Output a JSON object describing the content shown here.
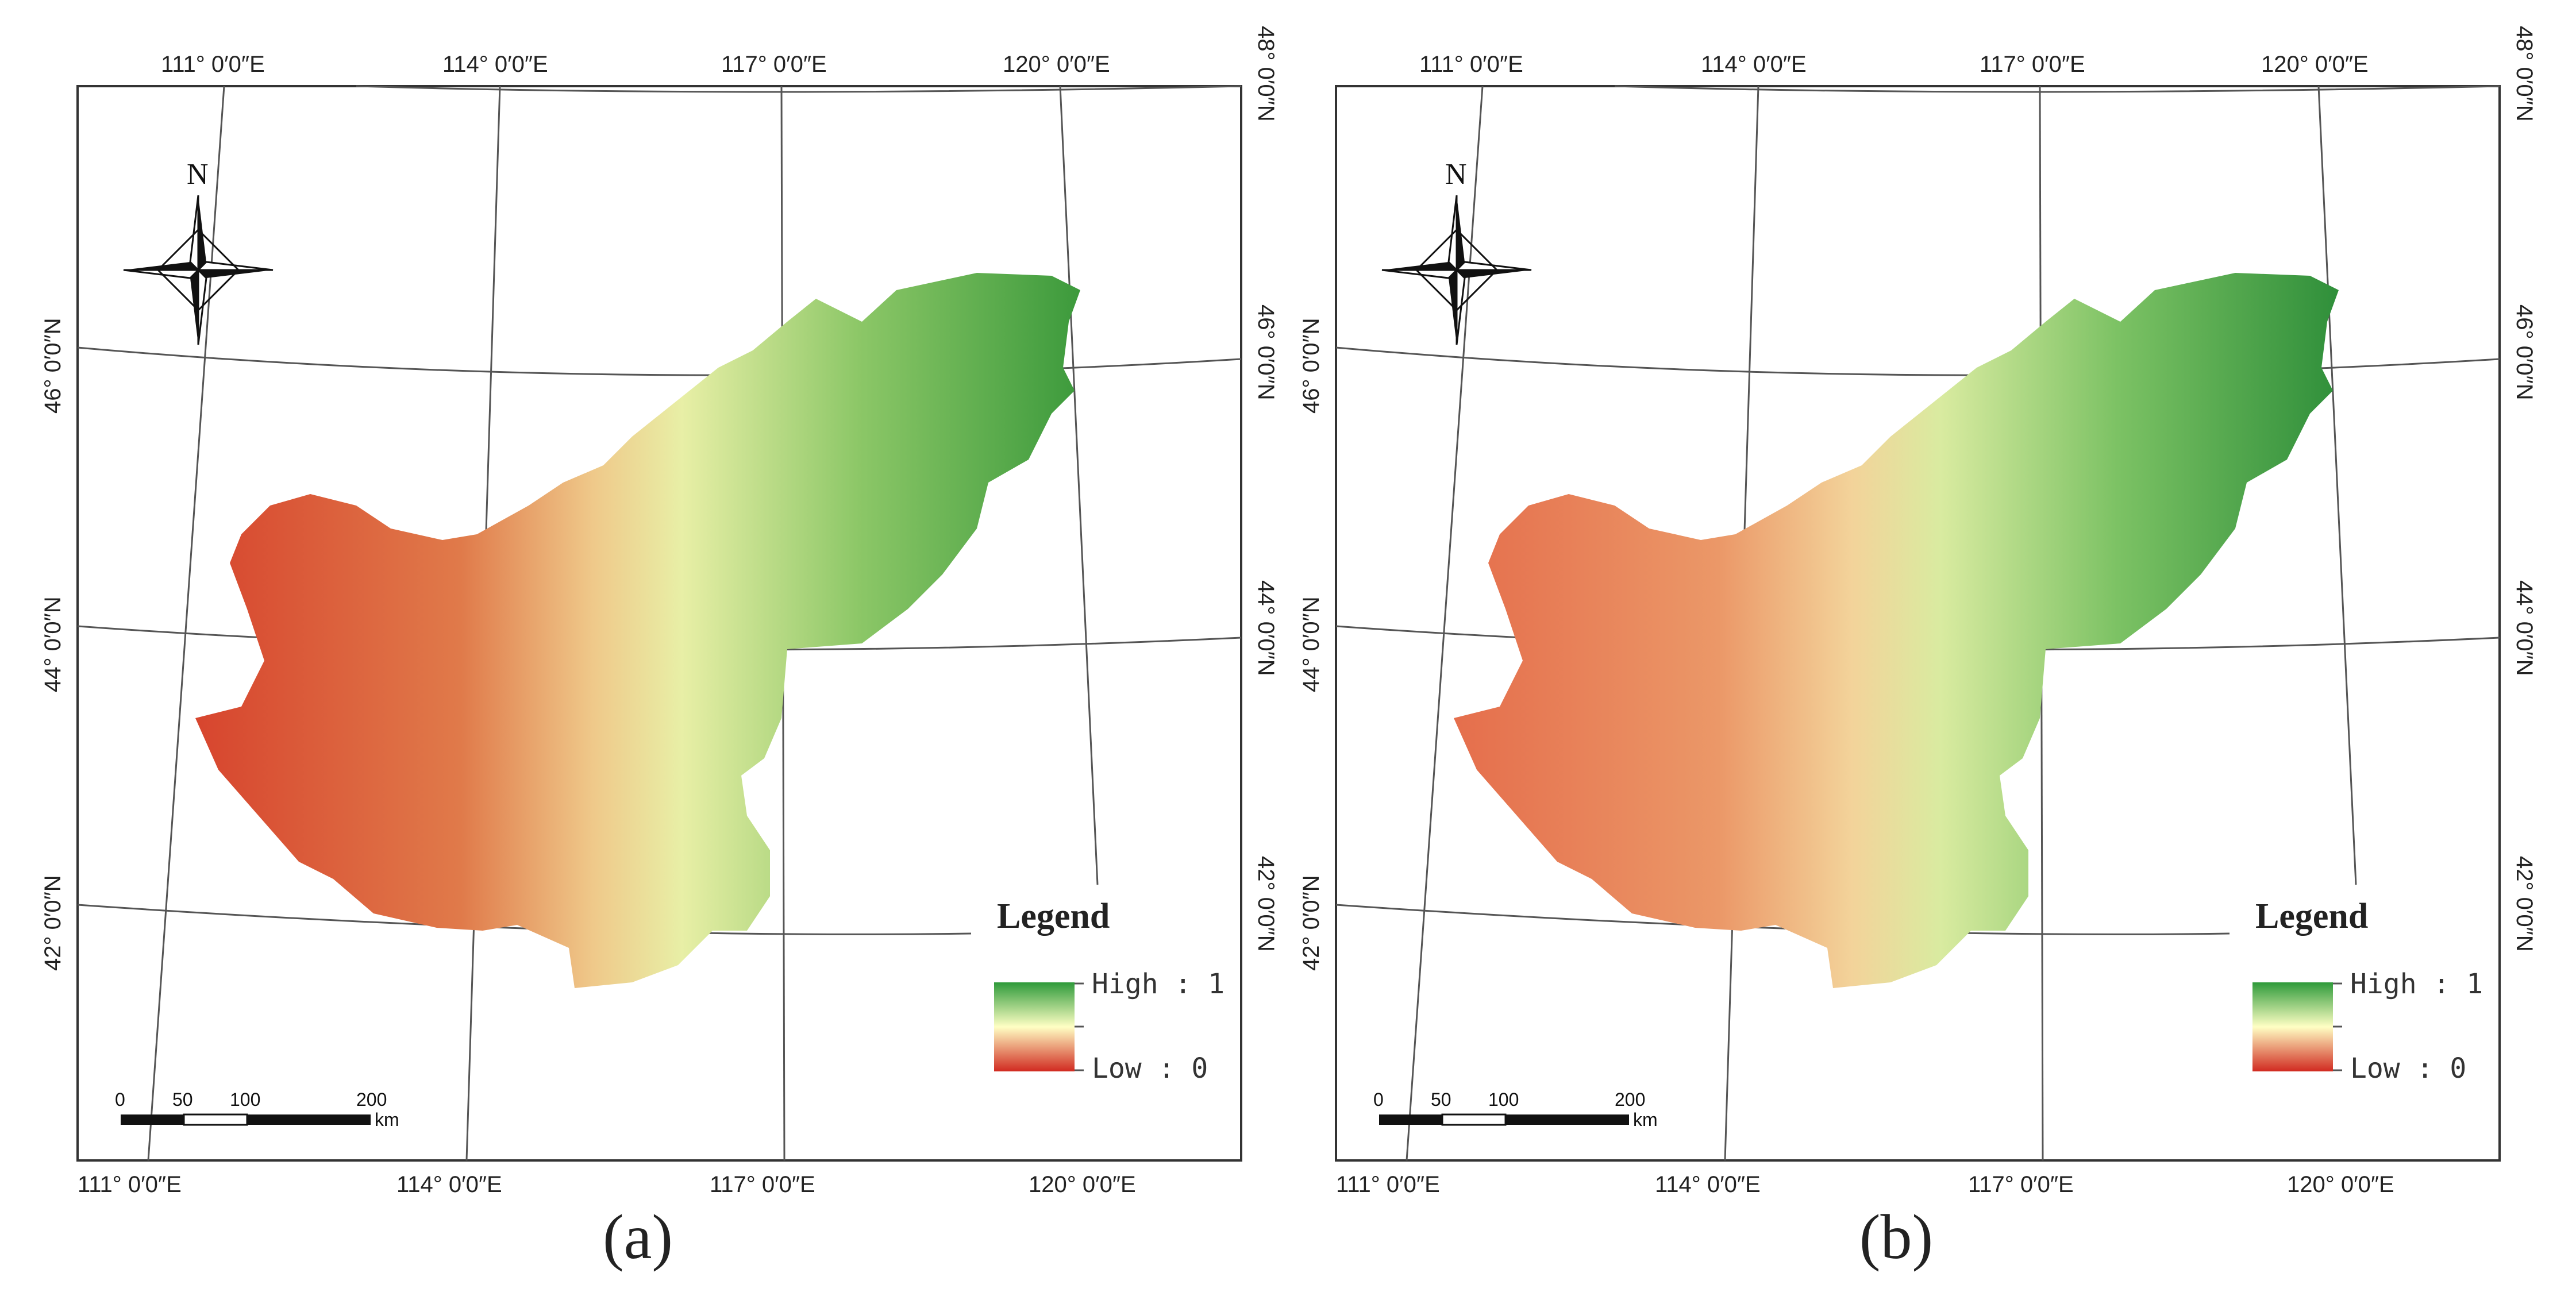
{
  "panels": [
    {
      "caption": "(a)",
      "legend": {
        "title": "Legend",
        "high": "High : 1",
        "low": "Low : 0"
      },
      "top_lon_labels": [
        "111° 0′0″E",
        "114° 0′0″E",
        "117° 0′0″E",
        "120° 0′0″E"
      ],
      "bottom_lon_labels": [
        "111° 0′0″E",
        "114° 0′0″E",
        "117° 0′0″E",
        "120° 0′0″E"
      ],
      "left_lat_labels": [
        "46° 0′0″N",
        "44° 0′0″N",
        "42° 0′0″N"
      ],
      "right_lat_labels": [
        "48° 0′0″N",
        "46° 0′0″N",
        "44° 0′0″N",
        "42° 0′0″N"
      ],
      "north": "N",
      "scale": {
        "ticks": [
          "0",
          "50",
          "100",
          "200"
        ],
        "unit": "km"
      }
    },
    {
      "caption": "(b)",
      "legend": {
        "title": "Legend",
        "high": "High : 1",
        "low": "Low : 0"
      },
      "top_lon_labels": [
        "111° 0′0″E",
        "114° 0′0″E",
        "117° 0′0″E",
        "120° 0′0″E"
      ],
      "bottom_lon_labels": [
        "111° 0′0″E",
        "114° 0′0″E",
        "117° 0′0″E",
        "120° 0′0″E"
      ],
      "left_lat_labels": [
        "46° 0′0″N",
        "44° 0′0″N",
        "42° 0′0″N"
      ],
      "right_lat_labels": [
        "48° 0′0″N",
        "46° 0′0″N",
        "44° 0′0″N",
        "42° 0′0″N"
      ],
      "north": "N",
      "scale": {
        "ticks": [
          "0",
          "50",
          "100",
          "200"
        ],
        "unit": "km"
      }
    }
  ],
  "colors": {
    "high": "#1a9641",
    "mid": "#ffffbf",
    "low": "#d7191c",
    "frame": "#333333"
  }
}
